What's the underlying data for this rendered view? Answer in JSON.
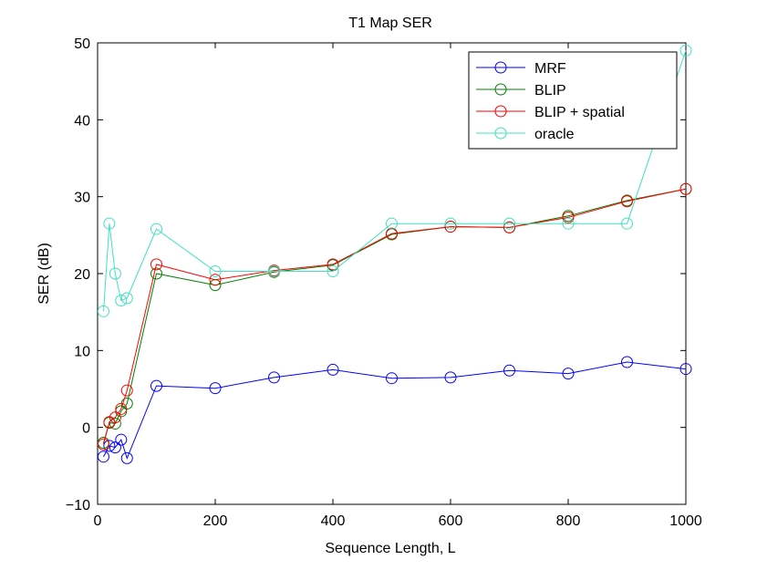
{
  "chart_data": {
    "type": "line",
    "title": "T1 Map SER",
    "xlabel": "Sequence Length, L",
    "ylabel": "SER (dB)",
    "xlim": [
      0,
      1000
    ],
    "ylim": [
      -10,
      50
    ],
    "xticks": [
      0,
      200,
      400,
      600,
      800,
      1000
    ],
    "xtick_labels": [
      "0",
      "200",
      "400",
      "600",
      "800",
      "1000"
    ],
    "yticks": [
      -10,
      0,
      10,
      20,
      30,
      40,
      50
    ],
    "ytick_labels": [
      "−10",
      "0",
      "10",
      "20",
      "30",
      "40",
      "50"
    ],
    "grid": false,
    "legend_position": "top-right",
    "marker": "circle",
    "x": [
      10,
      20,
      30,
      40,
      50,
      100,
      200,
      300,
      400,
      500,
      600,
      700,
      800,
      900,
      1000
    ],
    "series": [
      {
        "name": "MRF",
        "color": "#0000ff",
        "values": [
          -3.8,
          -2.4,
          -2.6,
          -1.6,
          -4.0,
          5.4,
          5.1,
          6.5,
          7.5,
          6.4,
          6.5,
          7.4,
          7.0,
          8.5,
          7.6
        ]
      },
      {
        "name": "BLIP",
        "color": "#008000",
        "values": [
          -2.0,
          0.6,
          0.5,
          2.1,
          3.1,
          20.0,
          18.5,
          20.2,
          21.1,
          25.1,
          26.1,
          26.0,
          27.5,
          29.5,
          31.0
        ]
      },
      {
        "name": "BLIP + spatial",
        "color": "#ff0000",
        "values": [
          -2.2,
          0.7,
          1.3,
          2.4,
          4.8,
          21.2,
          19.2,
          20.4,
          21.2,
          25.2,
          26.1,
          26.0,
          27.3,
          29.4,
          31.0
        ]
      },
      {
        "name": "oracle",
        "color": "#40e0c0",
        "values": [
          15.1,
          26.5,
          20.0,
          16.5,
          16.8,
          25.8,
          20.3,
          20.3,
          20.3,
          26.5,
          26.5,
          26.5,
          26.5,
          26.5,
          49.0
        ]
      }
    ]
  }
}
